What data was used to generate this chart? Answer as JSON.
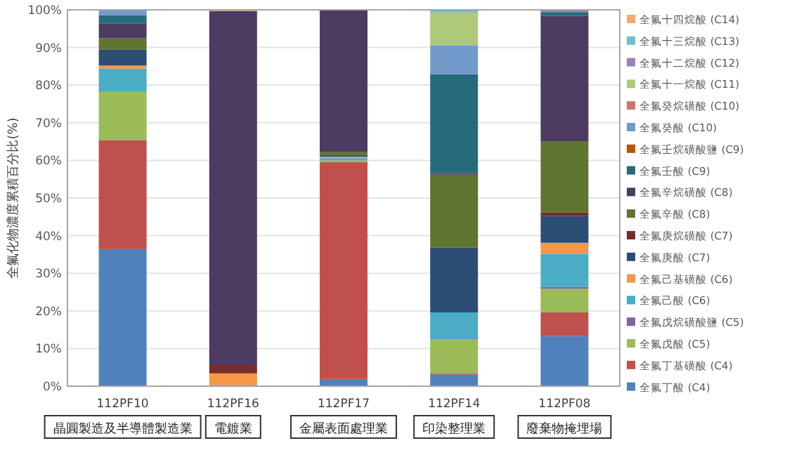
{
  "chart_data": {
    "type": "bar",
    "stacked": true,
    "ylabel": "全氟化物濃度累積百分比(%)",
    "categories": [
      "112PF10",
      "112PF16",
      "112PF17",
      "112PF14",
      "112PF08"
    ],
    "ylim": [
      0,
      100
    ],
    "yticks": [
      {
        "value": 0,
        "label": "0%"
      },
      {
        "value": 10,
        "label": "10%"
      },
      {
        "value": 20,
        "label": "20%"
      },
      {
        "value": 30,
        "label": "30%"
      },
      {
        "value": 40,
        "label": "40%"
      },
      {
        "value": 50,
        "label": "50%"
      },
      {
        "value": 60,
        "label": "60%"
      },
      {
        "value": 70,
        "label": "70%"
      },
      {
        "value": 80,
        "label": "80%"
      },
      {
        "value": 90,
        "label": "90%"
      },
      {
        "value": 100,
        "label": "100%"
      }
    ],
    "grid": "y",
    "legend": "right",
    "annotations": [
      "晶圓製造及半導體製造業",
      "電鍍業",
      "金屬表面處理業",
      "印染整理業",
      "廢棄物掩埋場"
    ],
    "series": [
      {
        "name": "全氟丁酸 (C4)",
        "color": "#4f81bd",
        "values": [
          36.4,
          0.3,
          1.9,
          3.1,
          13.3
        ]
      },
      {
        "name": "全氟丁基磺酸 (C4)",
        "color": "#c0504d",
        "values": [
          29.0,
          0,
          57.6,
          0.3,
          6.3
        ]
      },
      {
        "name": "全氟戊酸 (C5)",
        "color": "#9bbb59",
        "values": [
          12.8,
          0,
          0.5,
          9.1,
          6.3
        ]
      },
      {
        "name": "全氟戊烷磺酸鹽 (C5)",
        "color": "#8064a2",
        "values": [
          0,
          0,
          0,
          0,
          0.5
        ]
      },
      {
        "name": "全氟己酸 (C6)",
        "color": "#4bacc6",
        "values": [
          6.2,
          0,
          0.6,
          7.1,
          8.7
        ]
      },
      {
        "name": "全氟己基磺酸 (C6)",
        "color": "#f79646",
        "values": [
          0.8,
          3.1,
          0.4,
          0,
          3.0
        ]
      },
      {
        "name": "全氟庚酸 (C7)",
        "color": "#2c4d75",
        "values": [
          4.2,
          0,
          0.5,
          17.2,
          7.1
        ]
      },
      {
        "name": "全氟庚烷磺酸 (C7)",
        "color": "#772c2a",
        "values": [
          0,
          2.2,
          0,
          0,
          0.9
        ]
      },
      {
        "name": "全氟辛酸 (C8)",
        "color": "#5f7530",
        "values": [
          3.1,
          0,
          0.8,
          19.4,
          19.0
        ]
      },
      {
        "name": "全氟辛烷磺酸 (C8)",
        "color": "#4d3b62",
        "values": [
          3.8,
          94.1,
          37.7,
          0.4,
          33.3
        ]
      },
      {
        "name": "全氟壬酸 (C9)",
        "color": "#276a7c",
        "values": [
          2.3,
          0,
          0,
          26.3,
          1.0
        ]
      },
      {
        "name": "全氟壬烷磺酸鹽 (C9)",
        "color": "#b65708",
        "values": [
          0,
          0,
          0,
          0,
          0
        ]
      },
      {
        "name": "全氟癸酸 (C10)",
        "color": "#729aca",
        "values": [
          1.4,
          0,
          0,
          7.7,
          0
        ]
      },
      {
        "name": "全氟癸烷磺酸 (C10)",
        "color": "#cd7371",
        "values": [
          0,
          0,
          0,
          0,
          0
        ]
      },
      {
        "name": "全氟十一烷酸 (C11)",
        "color": "#afc97a",
        "values": [
          0,
          0,
          0,
          8.7,
          0
        ]
      },
      {
        "name": "全氟十二烷酸 (C12)",
        "color": "#9983b5",
        "values": [
          0,
          0,
          0,
          0,
          0.6
        ]
      },
      {
        "name": "全氟十三烷酸 (C13)",
        "color": "#6fbdd1",
        "values": [
          0,
          0,
          0,
          0.7,
          0
        ]
      },
      {
        "name": "全氟十四烷酸 (C14)",
        "color": "#f9ab6b",
        "values": [
          0,
          0.3,
          0,
          0,
          0
        ]
      }
    ]
  }
}
